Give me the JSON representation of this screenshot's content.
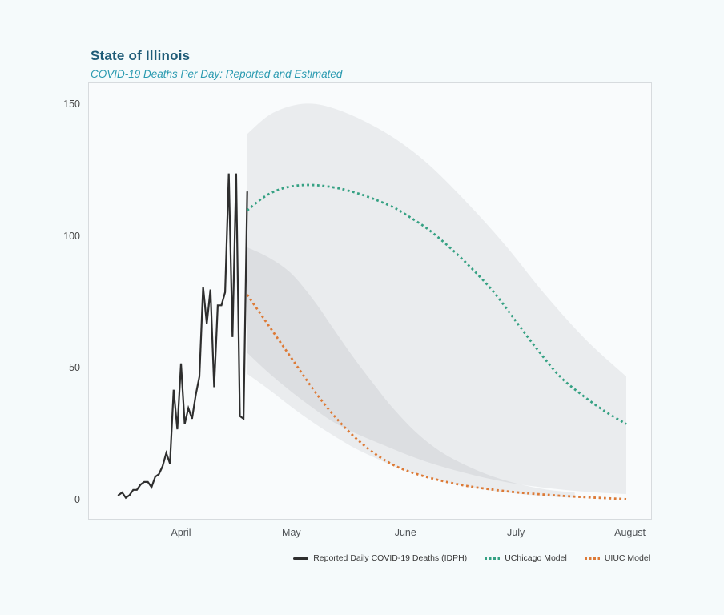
{
  "header": {
    "title": "State of Illinois",
    "subtitle": "COVID-19 Deaths Per Day: Reported and Estimated"
  },
  "colors": {
    "title": "#1e5b77",
    "subtitle": "#2a9ab0",
    "reported_line": "#2e2e2e",
    "uchicago_line": "#35a183",
    "uiuc_line": "#dd7a36",
    "band_fill": "rgba(60,70,80,0.08)",
    "plot_background": "#f9fbfc",
    "page_background": "#f5fafb",
    "frame_border": "#d7dbde"
  },
  "chart_data": {
    "type": "line",
    "title": "State of Illinois",
    "subtitle": "COVID-19 Deaths Per Day: Reported and Estimated",
    "xlabel": "",
    "ylabel": "",
    "grid": false,
    "legend_position": "bottom-right",
    "x_axis": {
      "tick_labels": [
        "April",
        "May",
        "June",
        "July",
        "August"
      ],
      "tick_days": [
        17,
        47,
        78,
        108,
        139
      ],
      "note_day_zero": "Mar 15",
      "domain_days": [
        0,
        143
      ]
    },
    "y_axis": {
      "tick_labels": [
        "0",
        "50",
        "100",
        "150"
      ],
      "ticks": [
        0,
        50,
        100,
        150
      ],
      "range": [
        -7,
        158
      ]
    },
    "series": [
      {
        "name": "Reported Daily COVID-19 Deaths (IDPH)",
        "style": "solid",
        "color": "#2e2e2e",
        "dates": [
          "Mar 15",
          "Mar 16",
          "Mar 17",
          "Mar 18",
          "Mar 19",
          "Mar 20",
          "Mar 21",
          "Mar 22",
          "Mar 23",
          "Mar 24",
          "Mar 25",
          "Mar 26",
          "Mar 27",
          "Mar 28",
          "Mar 29",
          "Mar 30",
          "Mar 31",
          "Apr 1",
          "Apr 2",
          "Apr 3",
          "Apr 4",
          "Apr 5",
          "Apr 6",
          "Apr 7",
          "Apr 8",
          "Apr 9",
          "Apr 10",
          "Apr 11",
          "Apr 12",
          "Apr 13",
          "Apr 14",
          "Apr 15",
          "Apr 16",
          "Apr 17",
          "Apr 18",
          "Apr 19"
        ],
        "days": [
          0,
          1,
          2,
          3,
          4,
          5,
          6,
          7,
          8,
          9,
          10,
          11,
          12,
          13,
          14,
          15,
          16,
          17,
          18,
          19,
          20,
          21,
          22,
          23,
          24,
          25,
          26,
          27,
          28,
          29,
          30,
          31,
          32,
          33,
          34,
          35
        ],
        "values": [
          2,
          3,
          1,
          2,
          4,
          4,
          6,
          7,
          7,
          5,
          9,
          10,
          13,
          18,
          14,
          42,
          27,
          52,
          29,
          35,
          31,
          40,
          47,
          81,
          67,
          80,
          43,
          74,
          74,
          79,
          124,
          62,
          124,
          32,
          31,
          117
        ]
      },
      {
        "name": "UChicago Model",
        "style": "dotted",
        "color": "#35a183",
        "days": [
          35,
          40,
          45,
          50,
          55,
          60,
          65,
          70,
          75,
          78,
          84,
          90,
          96,
          102,
          108,
          114,
          120,
          126,
          132,
          138
        ],
        "values": [
          110,
          115.5,
          118.5,
          119.6,
          119.4,
          118.3,
          116.5,
          114,
          111,
          108.5,
          103,
          96,
          88,
          79,
          68,
          57,
          47,
          40,
          34,
          29
        ]
      },
      {
        "name": "UIUC Model",
        "style": "dotted",
        "color": "#dd7a36",
        "days": [
          35,
          38,
          41,
          44,
          47,
          50,
          53,
          56,
          59,
          62,
          65,
          68,
          71,
          74,
          77,
          80,
          84,
          88,
          92,
          96,
          100,
          104,
          108,
          112,
          116,
          120,
          126,
          132,
          138
        ],
        "values": [
          78,
          72,
          66,
          60,
          54,
          48,
          42,
          36.5,
          31.5,
          27,
          23,
          19.5,
          16.5,
          14,
          12,
          10.5,
          8.8,
          7.4,
          6.2,
          5.2,
          4.4,
          3.7,
          3.1,
          2.6,
          2.2,
          1.8,
          1.3,
          0.9,
          0.5
        ]
      }
    ],
    "bands": [
      {
        "name": "UChicago Model uncertainty interval",
        "days": [
          35,
          42,
          51,
          60,
          72,
          83,
          94,
          105,
          116,
          127,
          138
        ],
        "upper": [
          139,
          147,
          150.5,
          148,
          140,
          129,
          114,
          97,
          78,
          61,
          47
        ],
        "lower": [
          56,
          47,
          37,
          28.5,
          21,
          15,
          10.5,
          7,
          4.8,
          3.3,
          2.4
        ]
      },
      {
        "name": "UIUC Model uncertainty interval",
        "days": [
          35,
          41,
          47,
          53,
          58,
          64,
          70,
          74,
          80,
          86,
          92,
          100,
          108,
          116,
          124
        ],
        "upper": [
          96,
          92,
          86,
          76,
          66,
          54,
          43,
          36,
          27,
          20,
          15,
          10,
          6.5,
          4.2,
          3
        ],
        "lower": [
          48,
          42,
          35.5,
          29.5,
          25,
          20,
          16,
          13.5,
          10.5,
          8,
          6,
          4,
          2.6,
          1.6,
          1
        ]
      }
    ],
    "legend_entries": [
      {
        "label": "Reported Daily COVID-19 Deaths (IDPH)",
        "style": "solid",
        "color": "#2e2e2e"
      },
      {
        "label": "UChicago Model",
        "style": "dotted",
        "color": "#35a183"
      },
      {
        "label": "UIUC Model",
        "style": "dotted",
        "color": "#dd7a36"
      }
    ]
  }
}
